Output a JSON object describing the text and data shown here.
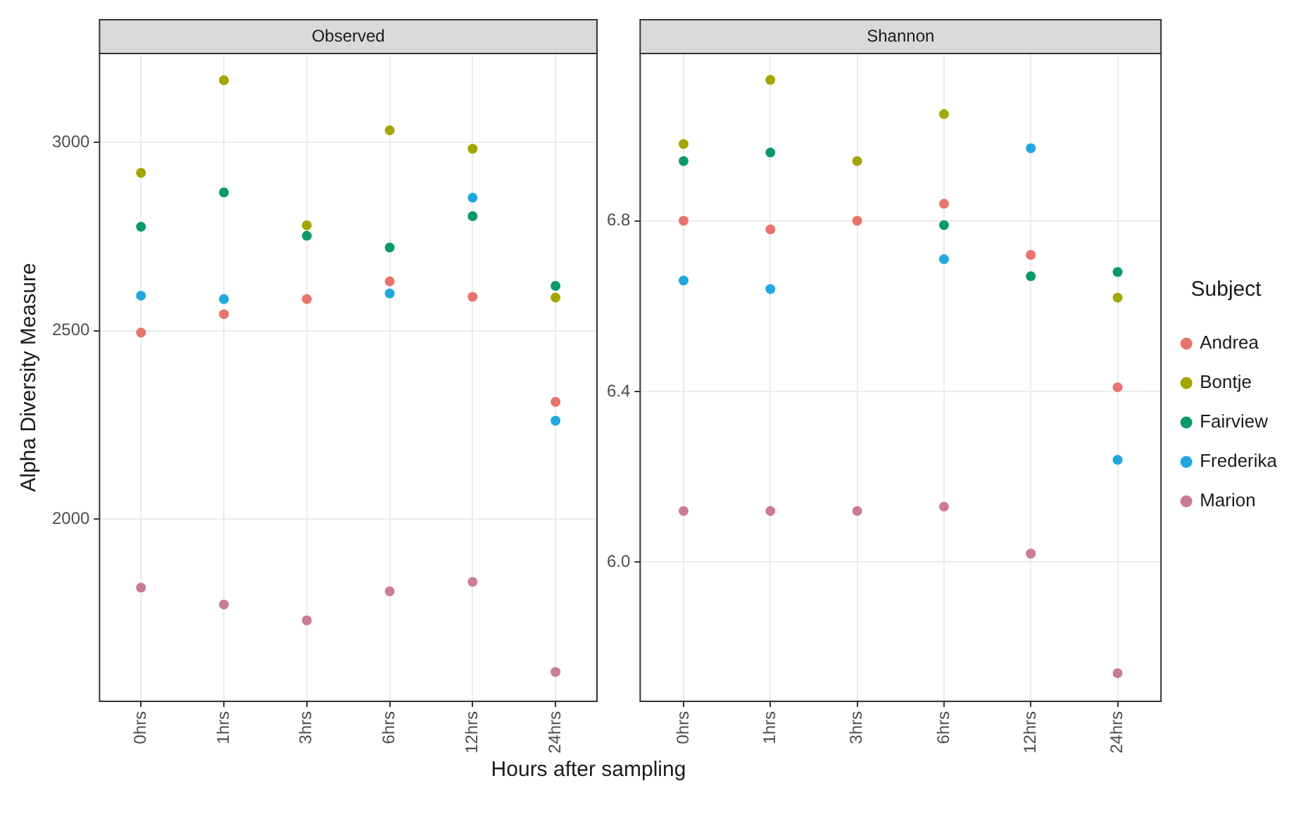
{
  "chart_data": [
    {
      "type": "scatter",
      "title": "Observed",
      "ylabel": "Alpha Diversity Measure",
      "xlabel": "Hours after sampling",
      "categories": [
        "0hrs",
        "1hrs",
        "3hrs",
        "6hrs",
        "12hrs",
        "24hrs"
      ],
      "ylim": [
        1516,
        3236
      ],
      "yticks": [
        2000,
        2500,
        3000
      ],
      "grid": true,
      "marker": "circle",
      "legend": false,
      "series": [
        {
          "color": "#e8736c",
          "values": [
            2495,
            2544,
            2584,
            2631,
            2590,
            2311
          ]
        },
        {
          "color": "#a3a500",
          "values": [
            2919,
            3165,
            2780,
            3032,
            2983,
            2588
          ]
        },
        {
          "color": "#0a9a6a",
          "values": [
            2776,
            2867,
            2752,
            2721,
            2804,
            2619
          ]
        },
        {
          "color": "#1fa8e0",
          "values": [
            2593,
            2584,
            null,
            2599,
            2853,
            2261
          ]
        },
        {
          "color": "#cc7a9a",
          "values": [
            1818,
            1773,
            1731,
            1808,
            1833,
            1594
          ]
        }
      ]
    },
    {
      "type": "scatter",
      "title": "Shannon",
      "categories": [
        "0hrs",
        "1hrs",
        "3hrs",
        "6hrs",
        "12hrs",
        "24hrs"
      ],
      "ylim": [
        5.674,
        7.192
      ],
      "yticks": [
        {
          "value": 6.0,
          "label": "6.0"
        },
        {
          "value": 6.4,
          "label": "6.4"
        },
        {
          "value": 6.8,
          "label": "6.8"
        }
      ],
      "grid": true,
      "marker": "circle",
      "legend": "right",
      "legend_title": "Subject",
      "series": [
        {
          "name": "Andrea",
          "color": "#e8736c",
          "values": [
            6.8,
            6.78,
            6.8,
            6.84,
            6.72,
            6.41
          ]
        },
        {
          "name": "Bontje",
          "color": "#a3a500",
          "values": [
            6.98,
            7.13,
            6.94,
            7.05,
            null,
            6.62
          ]
        },
        {
          "name": "Fairview",
          "color": "#0a9a6a",
          "values": [
            6.94,
            6.96,
            null,
            6.79,
            6.67,
            6.68
          ]
        },
        {
          "name": "Frederika",
          "color": "#1fa8e0",
          "values": [
            6.66,
            6.64,
            null,
            6.71,
            6.97,
            6.24
          ]
        },
        {
          "name": "Marion",
          "color": "#cc7a9a",
          "values": [
            6.12,
            6.12,
            6.12,
            6.13,
            6.02,
            5.74
          ]
        }
      ]
    }
  ]
}
